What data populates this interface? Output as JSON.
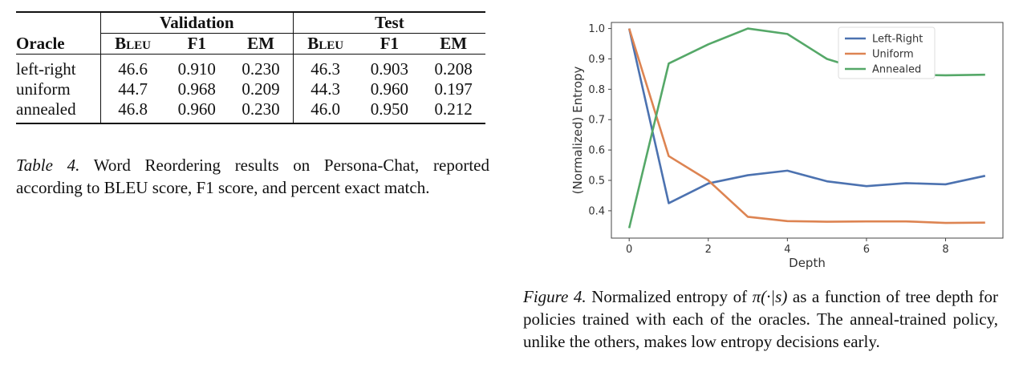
{
  "table": {
    "group_validation": "Validation",
    "group_test": "Test",
    "headers": [
      "Oracle",
      "Bleu",
      "F1",
      "EM",
      "Bleu",
      "F1",
      "EM"
    ],
    "rows": [
      [
        "left-right",
        "46.6",
        "0.910",
        "0.230",
        "46.3",
        "0.903",
        "0.208"
      ],
      [
        "uniform",
        "44.7",
        "0.968",
        "0.209",
        "44.3",
        "0.960",
        "0.197"
      ],
      [
        "annealed",
        "46.8",
        "0.960",
        "0.230",
        "46.0",
        "0.950",
        "0.212"
      ]
    ],
    "caption_label": "Table 4.",
    "caption_text": "Word Reordering results on Persona-Chat, reported according to BLEU score, F1 score, and percent exact match."
  },
  "figure": {
    "caption_label": "Figure 4.",
    "caption_text_1": "Normalized entropy of",
    "caption_math": "π(·|s)",
    "caption_text_2": "as a function of tree depth for policies trained with each of the oracles. The anneal-trained policy, unlike the others, makes low entropy decisions early."
  },
  "chart_data": {
    "type": "line",
    "xlabel": "Depth",
    "ylabel": "(Normalized) Entropy",
    "xlim": [
      -0.45,
      9.45
    ],
    "ylim": [
      0.31,
      1.02
    ],
    "xticks": [
      0,
      2,
      4,
      6,
      8
    ],
    "yticks": [
      0.4,
      0.5,
      0.6,
      0.7,
      0.8,
      0.9,
      1.0
    ],
    "x": [
      0,
      1,
      2,
      3,
      4,
      5,
      6,
      7,
      8,
      9
    ],
    "legend_position": "top-right",
    "grid": false,
    "series": [
      {
        "name": "Left-Right",
        "color": "#4c72b0",
        "values": [
          1.0,
          0.425,
          0.49,
          0.517,
          0.532,
          0.497,
          0.481,
          0.491,
          0.487,
          0.515
        ]
      },
      {
        "name": "Uniform",
        "color": "#dd8452",
        "values": [
          1.0,
          0.58,
          0.5,
          0.38,
          0.366,
          0.364,
          0.365,
          0.365,
          0.36,
          0.361
        ]
      },
      {
        "name": "Annealed",
        "color": "#55a868",
        "values": [
          0.343,
          0.885,
          0.948,
          1.0,
          0.982,
          0.9,
          0.86,
          0.848,
          0.846,
          0.848
        ]
      }
    ]
  }
}
